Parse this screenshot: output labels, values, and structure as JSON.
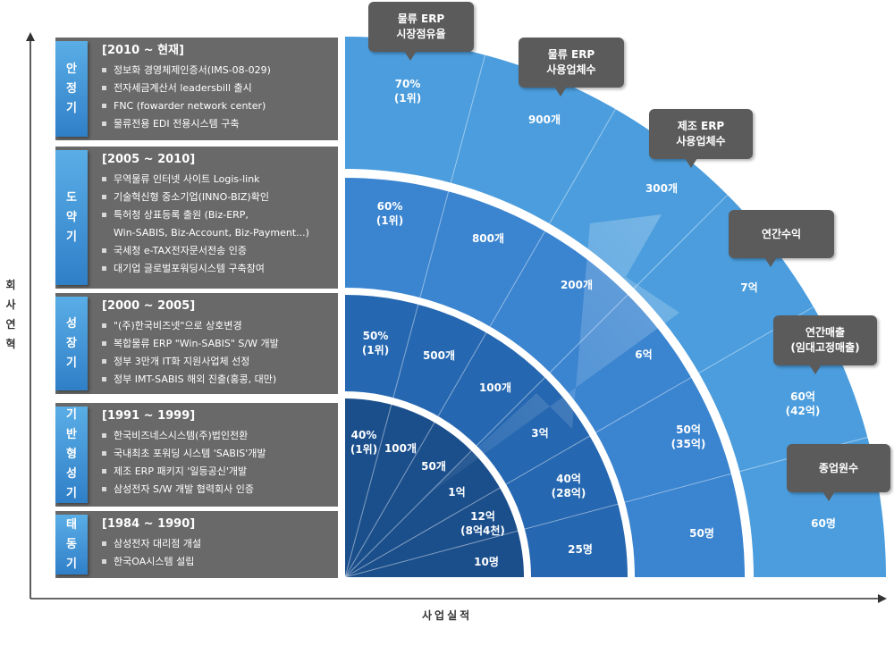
{
  "axes": {
    "y_label": "회사연혁",
    "x_label": "사업실적"
  },
  "periods": [
    {
      "stage": "안정기",
      "years": "[2010 ~ 현재]",
      "items": [
        "정보화 경영체제인증서(IMS-08-029)",
        "전자세금계산서 leadersbill 출시",
        "FNC (fowarder network center)",
        "물류전용 EDI 전용시스템 구축"
      ]
    },
    {
      "stage": "도약기",
      "years": "[2005 ~ 2010]",
      "items": [
        "무역물류 인터넷 사이트 Logis-link",
        "기술혁신형 중소기업(INNO-BIZ)확인",
        "특허청 상표등록 출원 (Biz-ERP,",
        "Win-SABIS, Biz-Account, Biz-Payment...)",
        "국세청 e-TAX전자문서전송 인증",
        "대기업 글로벌포워딩시스템 구축참여"
      ]
    },
    {
      "stage": "성장기",
      "years": "[2000 ~ 2005]",
      "items": [
        "\"(주)한국비즈넷\"으로 상호변경",
        "복합물류 ERP \"Win-SABIS\" S/W 개발",
        "정부 3만개 IT화 지원사업체 선정",
        "정부 IMT-SABIS 해외 진출(홍콩, 대만)"
      ]
    },
    {
      "stage": "기반형성기",
      "years": "[1991 ~ 1999]",
      "items": [
        "한국비즈네스시스템(주)법인전환",
        "국내최초 포워딩 시스템 'SABIS'개발",
        "제조 ERP 패키지 '일등공신'개발",
        "삼성전자 S/W 개발 협력회사 인증"
      ]
    },
    {
      "stage": "태동기",
      "years": "[1984 ~ 1990]",
      "items": [
        "삼성전자 대리점 개설",
        "한국OA시스템 설립"
      ]
    }
  ],
  "bubbles": [
    {
      "id": "share",
      "text": "물류 ERP\n시장점유율"
    },
    {
      "id": "logistics_users",
      "text": "물류 ERP\n사용업체수"
    },
    {
      "id": "mfg_users",
      "text": "제조 ERP\n사용업체수"
    },
    {
      "id": "profit",
      "text": "연간수익"
    },
    {
      "id": "revenue",
      "text": "연간매출\n(임대고정매출)"
    },
    {
      "id": "employees",
      "text": "종업원수"
    }
  ],
  "rings": [
    {
      "share": "40%\n(1위)",
      "logistics_users": "100개",
      "mfg_users": "50개",
      "profit": "1억",
      "revenue": "12억\n(8억4천)",
      "employees": "10명"
    },
    {
      "share": "50%\n(1위)",
      "logistics_users": "500개",
      "mfg_users": "100개",
      "profit": "3억",
      "revenue": "40억\n(28억)",
      "employees": "25명"
    },
    {
      "share": "60%\n(1위)",
      "logistics_users": "800개",
      "mfg_users": "200개",
      "profit": "6억",
      "revenue": "50억\n(35억)",
      "employees": "50명"
    },
    {
      "share": "70%\n(1위)",
      "logistics_users": "900개",
      "mfg_users": "300개",
      "profit": "7억",
      "revenue": "60억\n(42억)",
      "employees": "60명"
    }
  ],
  "colors": {
    "ring1": "#1b4f8c",
    "ring2": "#2567b0",
    "ring3": "#3a84d0",
    "ring4": "#4b9ddd",
    "panel": "#696969",
    "stage": "#3b8fd6",
    "bubble": "#5b5b5b"
  }
}
